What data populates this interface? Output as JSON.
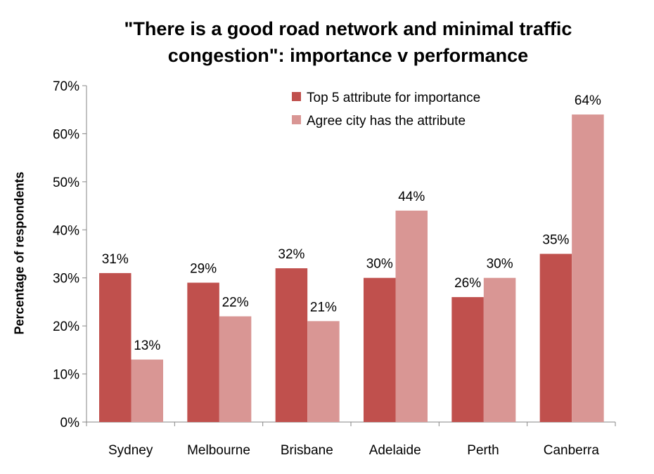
{
  "chart_data": {
    "type": "bar",
    "title": "\"There is a good road network and minimal traffic congestion\": importance v performance",
    "title_lines": [
      "\"There is a good road network and minimal traffic",
      "congestion\": importance v performance"
    ],
    "xlabel": "",
    "ylabel": "Percentage of respondents",
    "ylim": [
      0,
      70
    ],
    "yticks": [
      "0%",
      "10%",
      "20%",
      "30%",
      "40%",
      "50%",
      "60%",
      "70%"
    ],
    "categories": [
      "Sydney",
      "Melbourne",
      "Brisbane",
      "Adelaide",
      "Perth",
      "Canberra"
    ],
    "series": [
      {
        "name": "Top 5 attribute for importance",
        "color": "#C0504D",
        "values": [
          31,
          29,
          32,
          30,
          26,
          35
        ],
        "labels": [
          "31%",
          "29%",
          "32%",
          "30%",
          "26%",
          "35%"
        ]
      },
      {
        "name": "Agree city has the attribute",
        "color": "#D99694",
        "values": [
          13,
          22,
          21,
          44,
          30,
          64
        ],
        "labels": [
          "13%",
          "22%",
          "21%",
          "44%",
          "30%",
          "64%"
        ]
      }
    ],
    "legend_position": "top-right",
    "grid": false
  }
}
